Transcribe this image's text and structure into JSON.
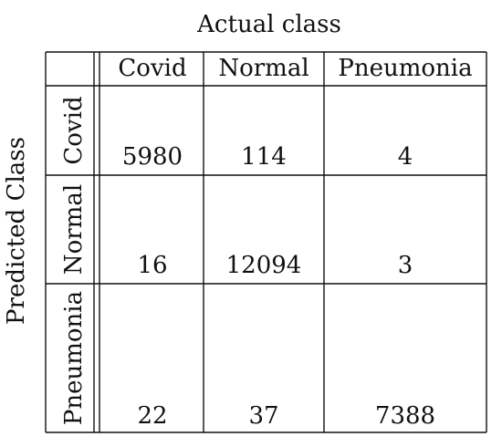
{
  "chart_data": {
    "type": "table",
    "xlabel": "Actual class",
    "ylabel": "Predicted Class",
    "columns": [
      "Covid",
      "Normal",
      "Pneumonia"
    ],
    "rows": [
      "Covid",
      "Normal",
      "Pneumonia"
    ],
    "values": [
      [
        5980,
        114,
        4
      ],
      [
        16,
        12094,
        3
      ],
      [
        22,
        37,
        7388
      ]
    ]
  }
}
